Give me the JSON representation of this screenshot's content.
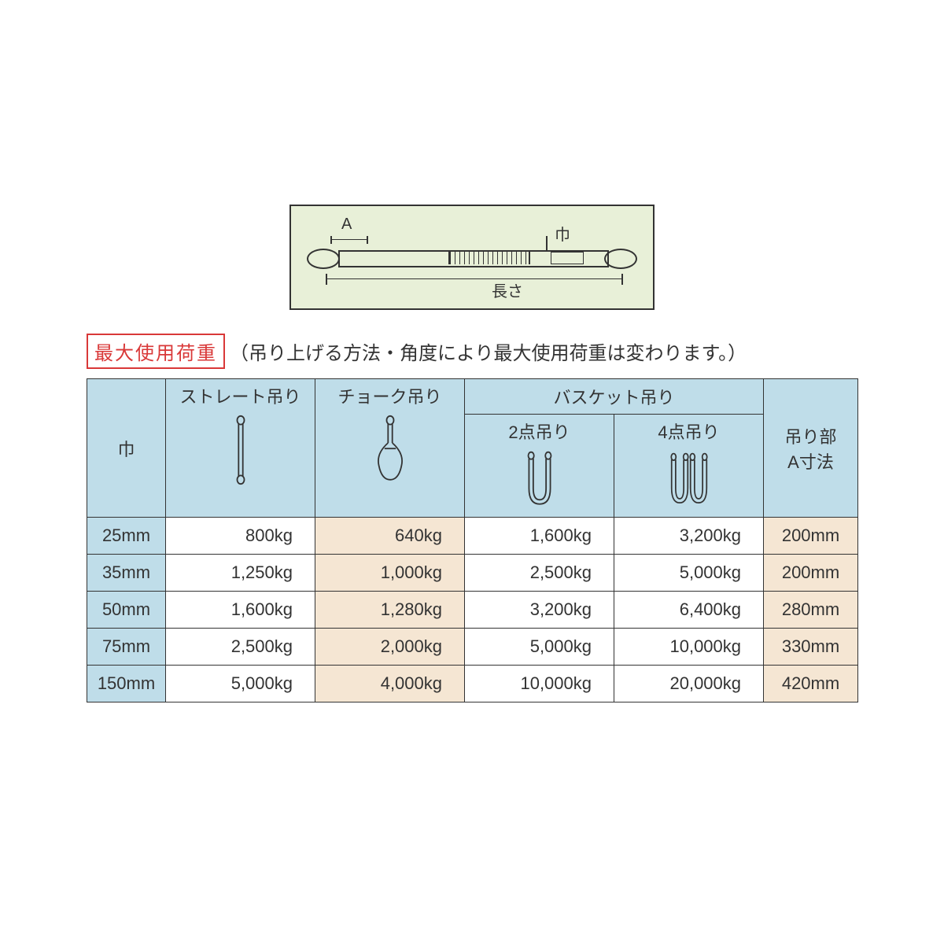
{
  "diagram": {
    "label_a": "A",
    "label_width": "巾",
    "label_length": "長さ",
    "bg_color": "#e8f0d8",
    "border_color": "#333333"
  },
  "title": {
    "badge": "最大使用荷重",
    "note": "（吊り上げる方法・角度により最大使用荷重は変わります。）",
    "badge_color": "#d93838"
  },
  "table": {
    "header_bg": "#bfdde9",
    "cream_bg": "#f5e6d3",
    "border_color": "#333333",
    "columns": {
      "width_label": "巾",
      "straight": "ストレート吊り",
      "choke": "チョーク吊り",
      "basket_group": "バスケット吊り",
      "basket_2pt": "2点吊り",
      "basket_4pt": "4点吊り",
      "a_dim": "吊り部\nA寸法"
    },
    "rows": [
      {
        "width": "25mm",
        "straight": "800kg",
        "choke": "640kg",
        "b2": "1,600kg",
        "b4": "3,200kg",
        "a": "200mm"
      },
      {
        "width": "35mm",
        "straight": "1,250kg",
        "choke": "1,000kg",
        "b2": "2,500kg",
        "b4": "5,000kg",
        "a": "200mm"
      },
      {
        "width": "50mm",
        "straight": "1,600kg",
        "choke": "1,280kg",
        "b2": "3,200kg",
        "b4": "6,400kg",
        "a": "280mm"
      },
      {
        "width": "75mm",
        "straight": "2,500kg",
        "choke": "2,000kg",
        "b2": "5,000kg",
        "b4": "10,000kg",
        "a": "330mm"
      },
      {
        "width": "150mm",
        "straight": "5,000kg",
        "choke": "4,000kg",
        "b2": "10,000kg",
        "b4": "20,000kg",
        "a": "420mm"
      }
    ]
  }
}
